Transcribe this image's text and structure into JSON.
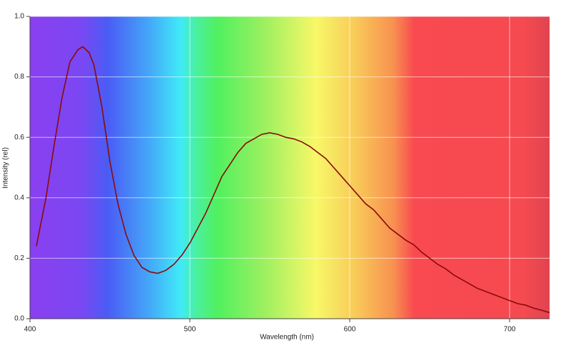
{
  "chart_data": {
    "type": "line",
    "x_label": "Wavelength (nm)",
    "y_label": "Intensity (rel)",
    "xlim": [
      400,
      725
    ],
    "xticks": [
      400,
      500,
      600,
      700
    ],
    "ylim": [
      0,
      1
    ],
    "yticks": [
      {
        "value": 0,
        "label": "0.0"
      },
      0.2,
      0.4,
      0.6,
      0.8,
      {
        "value": 1,
        "label": "1.0"
      }
    ],
    "grid": true,
    "x": [
      404,
      410,
      415,
      420,
      425,
      430,
      433,
      437,
      440,
      445,
      450,
      455,
      460,
      465,
      470,
      475,
      480,
      485,
      490,
      495,
      500,
      505,
      510,
      515,
      520,
      525,
      530,
      535,
      540,
      545,
      550,
      555,
      560,
      565,
      570,
      575,
      580,
      585,
      590,
      595,
      600,
      605,
      610,
      615,
      620,
      625,
      630,
      635,
      640,
      645,
      650,
      655,
      660,
      665,
      670,
      675,
      680,
      685,
      690,
      695,
      700,
      705,
      710,
      715,
      720,
      725
    ],
    "series": [
      {
        "color": "#8b0a0a",
        "values": [
          0.24,
          0.4,
          0.57,
          0.73,
          0.85,
          0.89,
          0.9,
          0.88,
          0.84,
          0.7,
          0.52,
          0.38,
          0.28,
          0.21,
          0.17,
          0.155,
          0.15,
          0.16,
          0.18,
          0.21,
          0.25,
          0.3,
          0.35,
          0.41,
          0.47,
          0.51,
          0.55,
          0.58,
          0.595,
          0.61,
          0.615,
          0.61,
          0.6,
          0.595,
          0.585,
          0.57,
          0.55,
          0.53,
          0.5,
          0.47,
          0.44,
          0.41,
          0.38,
          0.36,
          0.33,
          0.3,
          0.28,
          0.26,
          0.245,
          0.22,
          0.2,
          0.18,
          0.165,
          0.145,
          0.13,
          0.115,
          0.1,
          0.09,
          0.08,
          0.07,
          0.06,
          0.05,
          0.045,
          0.035,
          0.028,
          0.02
        ]
      }
    ]
  }
}
